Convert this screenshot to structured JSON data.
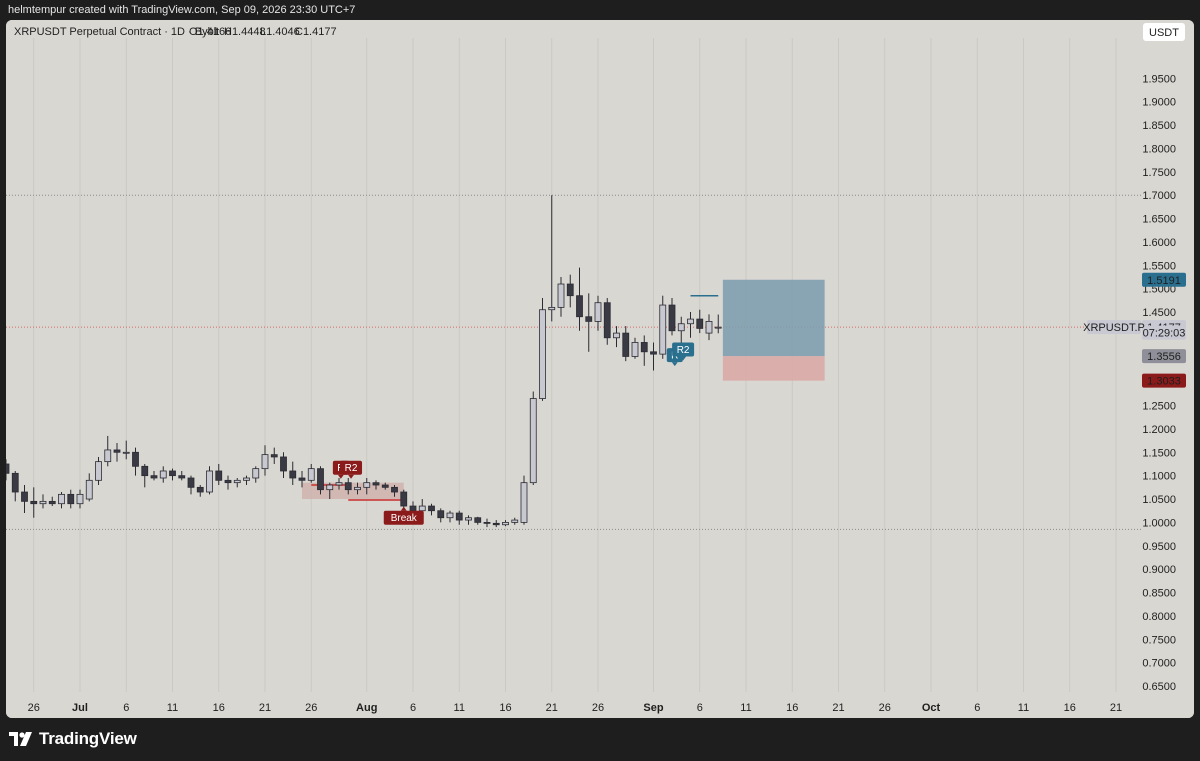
{
  "header": {
    "credit": "helmtempur created with TradingView.com, Sep 09, 2026 23:30 UTC+7"
  },
  "footer": {
    "brand": "TradingView"
  },
  "colors": {
    "background": "#d9d7d2",
    "up_candle_fill": "#c8c8d0",
    "down_candle_fill": "#3a3a44",
    "wick": "#2b2b33",
    "blue_zone": "#7f9fae",
    "red_zone": "#d9aaa6",
    "pink_range": "#cfb3ae",
    "level_red": "#c92d2d",
    "badge_red": "#8b1a1a",
    "badge_blue": "#2b6f8f"
  },
  "chart_data": {
    "type": "candlestick",
    "title": "XRPUSDT Perpetual Contract · 1D · Bybit",
    "ohlc_readout": {
      "o": "O1.4166",
      "h": "H1.4448",
      "l": "L1.4046",
      "c": "C1.4177"
    },
    "currency_button": "USDT",
    "ylim": [
      0.63,
      2.05
    ],
    "y_ticks": [
      "0.6500",
      "0.7000",
      "0.7500",
      "0.8000",
      "0.8500",
      "0.9000",
      "0.9500",
      "1.0000",
      "1.0500",
      "1.1000",
      "1.1500",
      "1.2000",
      "1.2500",
      "1.3000",
      "1.3500",
      "1.4000",
      "1.4500",
      "1.5000",
      "1.5500",
      "1.6000",
      "1.6500",
      "1.7000",
      "1.7500",
      "1.8000",
      "1.8500",
      "1.9000",
      "1.9500"
    ],
    "x_ticks": [
      {
        "label": "26",
        "day": -5
      },
      {
        "label": "Jul",
        "day": 0
      },
      {
        "label": "6",
        "day": 5
      },
      {
        "label": "11",
        "day": 10
      },
      {
        "label": "16",
        "day": 15
      },
      {
        "label": "21",
        "day": 20
      },
      {
        "label": "26",
        "day": 25
      },
      {
        "label": "Aug",
        "day": 31
      },
      {
        "label": "6",
        "day": 36
      },
      {
        "label": "11",
        "day": 41
      },
      {
        "label": "16",
        "day": 46
      },
      {
        "label": "21",
        "day": 51
      },
      {
        "label": "26",
        "day": 56
      },
      {
        "label": "Sep",
        "day": 62
      },
      {
        "label": "6",
        "day": 67
      },
      {
        "label": "11",
        "day": 72
      },
      {
        "label": "16",
        "day": 77
      },
      {
        "label": "21",
        "day": 82
      },
      {
        "label": "26",
        "day": 87
      },
      {
        "label": "Oct",
        "day": 92
      },
      {
        "label": "6",
        "day": 97
      },
      {
        "label": "11",
        "day": 102
      },
      {
        "label": "16",
        "day": 107
      },
      {
        "label": "21",
        "day": 112
      }
    ],
    "candles": [
      {
        "day": -8,
        "o": 1.125,
        "h": 1.135,
        "l": 1.09,
        "c": 1.105
      },
      {
        "day": -7,
        "o": 1.105,
        "h": 1.11,
        "l": 1.045,
        "c": 1.065
      },
      {
        "day": -6,
        "o": 1.065,
        "h": 1.08,
        "l": 1.02,
        "c": 1.045
      },
      {
        "day": -5,
        "o": 1.045,
        "h": 1.075,
        "l": 1.01,
        "c": 1.04
      },
      {
        "day": -4,
        "o": 1.04,
        "h": 1.06,
        "l": 1.03,
        "c": 1.045
      },
      {
        "day": -3,
        "o": 1.045,
        "h": 1.055,
        "l": 1.035,
        "c": 1.04
      },
      {
        "day": -2,
        "o": 1.04,
        "h": 1.065,
        "l": 1.03,
        "c": 1.06
      },
      {
        "day": -1,
        "o": 1.06,
        "h": 1.07,
        "l": 1.03,
        "c": 1.04
      },
      {
        "day": 0,
        "o": 1.04,
        "h": 1.07,
        "l": 1.03,
        "c": 1.06
      },
      {
        "day": 1,
        "o": 1.05,
        "h": 1.105,
        "l": 1.045,
        "c": 1.09
      },
      {
        "day": 2,
        "o": 1.09,
        "h": 1.14,
        "l": 1.08,
        "c": 1.13
      },
      {
        "day": 3,
        "o": 1.13,
        "h": 1.185,
        "l": 1.12,
        "c": 1.155
      },
      {
        "day": 4,
        "o": 1.155,
        "h": 1.17,
        "l": 1.13,
        "c": 1.15
      },
      {
        "day": 5,
        "o": 1.15,
        "h": 1.175,
        "l": 1.135,
        "c": 1.15
      },
      {
        "day": 6,
        "o": 1.15,
        "h": 1.16,
        "l": 1.1,
        "c": 1.12
      },
      {
        "day": 7,
        "o": 1.12,
        "h": 1.125,
        "l": 1.075,
        "c": 1.1
      },
      {
        "day": 8,
        "o": 1.1,
        "h": 1.11,
        "l": 1.09,
        "c": 1.095
      },
      {
        "day": 9,
        "o": 1.095,
        "h": 1.12,
        "l": 1.085,
        "c": 1.11
      },
      {
        "day": 10,
        "o": 1.11,
        "h": 1.115,
        "l": 1.09,
        "c": 1.1
      },
      {
        "day": 11,
        "o": 1.1,
        "h": 1.11,
        "l": 1.09,
        "c": 1.095
      },
      {
        "day": 12,
        "o": 1.095,
        "h": 1.1,
        "l": 1.06,
        "c": 1.075
      },
      {
        "day": 13,
        "o": 1.075,
        "h": 1.08,
        "l": 1.055,
        "c": 1.065
      },
      {
        "day": 14,
        "o": 1.065,
        "h": 1.12,
        "l": 1.06,
        "c": 1.11
      },
      {
        "day": 15,
        "o": 1.11,
        "h": 1.125,
        "l": 1.08,
        "c": 1.09
      },
      {
        "day": 16,
        "o": 1.09,
        "h": 1.1,
        "l": 1.07,
        "c": 1.085
      },
      {
        "day": 17,
        "o": 1.085,
        "h": 1.095,
        "l": 1.075,
        "c": 1.09
      },
      {
        "day": 18,
        "o": 1.09,
        "h": 1.1,
        "l": 1.08,
        "c": 1.095
      },
      {
        "day": 19,
        "o": 1.095,
        "h": 1.12,
        "l": 1.085,
        "c": 1.115
      },
      {
        "day": 20,
        "o": 1.115,
        "h": 1.165,
        "l": 1.1,
        "c": 1.145
      },
      {
        "day": 21,
        "o": 1.145,
        "h": 1.16,
        "l": 1.125,
        "c": 1.14
      },
      {
        "day": 22,
        "o": 1.14,
        "h": 1.15,
        "l": 1.095,
        "c": 1.11
      },
      {
        "day": 23,
        "o": 1.11,
        "h": 1.13,
        "l": 1.08,
        "c": 1.095
      },
      {
        "day": 24,
        "o": 1.095,
        "h": 1.11,
        "l": 1.075,
        "c": 1.09
      },
      {
        "day": 25,
        "o": 1.09,
        "h": 1.125,
        "l": 1.085,
        "c": 1.115
      },
      {
        "day": 26,
        "o": 1.115,
        "h": 1.12,
        "l": 1.06,
        "c": 1.07
      },
      {
        "day": 27,
        "o": 1.07,
        "h": 1.085,
        "l": 1.05,
        "c": 1.08
      },
      {
        "day": 28,
        "o": 1.08,
        "h": 1.095,
        "l": 1.07,
        "c": 1.085
      },
      {
        "day": 29,
        "o": 1.085,
        "h": 1.095,
        "l": 1.06,
        "c": 1.07
      },
      {
        "day": 30,
        "o": 1.07,
        "h": 1.085,
        "l": 1.06,
        "c": 1.075
      },
      {
        "day": 31,
        "o": 1.075,
        "h": 1.095,
        "l": 1.06,
        "c": 1.085
      },
      {
        "day": 32,
        "o": 1.085,
        "h": 1.09,
        "l": 1.07,
        "c": 1.08
      },
      {
        "day": 33,
        "o": 1.08,
        "h": 1.085,
        "l": 1.07,
        "c": 1.075
      },
      {
        "day": 34,
        "o": 1.075,
        "h": 1.08,
        "l": 1.055,
        "c": 1.065
      },
      {
        "day": 35,
        "o": 1.065,
        "h": 1.07,
        "l": 1.025,
        "c": 1.035
      },
      {
        "day": 36,
        "o": 1.035,
        "h": 1.045,
        "l": 1.015,
        "c": 1.025
      },
      {
        "day": 37,
        "o": 1.025,
        "h": 1.05,
        "l": 1.02,
        "c": 1.035
      },
      {
        "day": 38,
        "o": 1.035,
        "h": 1.04,
        "l": 1.015,
        "c": 1.025
      },
      {
        "day": 39,
        "o": 1.025,
        "h": 1.03,
        "l": 1.0,
        "c": 1.01
      },
      {
        "day": 40,
        "o": 1.01,
        "h": 1.025,
        "l": 1.0,
        "c": 1.02
      },
      {
        "day": 41,
        "o": 1.02,
        "h": 1.025,
        "l": 0.995,
        "c": 1.005
      },
      {
        "day": 42,
        "o": 1.005,
        "h": 1.015,
        "l": 0.995,
        "c": 1.01
      },
      {
        "day": 43,
        "o": 1.01,
        "h": 1.012,
        "l": 0.995,
        "c": 1.0
      },
      {
        "day": 44,
        "o": 1.0,
        "h": 1.008,
        "l": 0.99,
        "c": 0.998
      },
      {
        "day": 45,
        "o": 0.998,
        "h": 1.005,
        "l": 0.99,
        "c": 0.995
      },
      {
        "day": 46,
        "o": 0.995,
        "h": 1.005,
        "l": 0.992,
        "c": 1.0
      },
      {
        "day": 47,
        "o": 1.0,
        "h": 1.01,
        "l": 0.995,
        "c": 1.005
      },
      {
        "day": 48,
        "o": 1.0,
        "h": 1.1,
        "l": 0.995,
        "c": 1.085
      },
      {
        "day": 49,
        "o": 1.085,
        "h": 1.28,
        "l": 1.08,
        "c": 1.265
      },
      {
        "day": 50,
        "o": 1.265,
        "h": 1.48,
        "l": 1.26,
        "c": 1.455
      },
      {
        "day": 51,
        "o": 1.455,
        "h": 1.7,
        "l": 1.43,
        "c": 1.46
      },
      {
        "day": 52,
        "o": 1.46,
        "h": 1.525,
        "l": 1.44,
        "c": 1.51
      },
      {
        "day": 53,
        "o": 1.51,
        "h": 1.53,
        "l": 1.46,
        "c": 1.485
      },
      {
        "day": 54,
        "o": 1.485,
        "h": 1.545,
        "l": 1.41,
        "c": 1.44
      },
      {
        "day": 55,
        "o": 1.44,
        "h": 1.49,
        "l": 1.365,
        "c": 1.43
      },
      {
        "day": 56,
        "o": 1.43,
        "h": 1.485,
        "l": 1.41,
        "c": 1.47
      },
      {
        "day": 57,
        "o": 1.47,
        "h": 1.48,
        "l": 1.38,
        "c": 1.395
      },
      {
        "day": 58,
        "o": 1.395,
        "h": 1.42,
        "l": 1.375,
        "c": 1.405
      },
      {
        "day": 59,
        "o": 1.405,
        "h": 1.42,
        "l": 1.345,
        "c": 1.355
      },
      {
        "day": 60,
        "o": 1.355,
        "h": 1.395,
        "l": 1.35,
        "c": 1.385
      },
      {
        "day": 61,
        "o": 1.385,
        "h": 1.4,
        "l": 1.335,
        "c": 1.365
      },
      {
        "day": 62,
        "o": 1.365,
        "h": 1.385,
        "l": 1.325,
        "c": 1.36
      },
      {
        "day": 63,
        "o": 1.36,
        "h": 1.485,
        "l": 1.35,
        "c": 1.465
      },
      {
        "day": 64,
        "o": 1.465,
        "h": 1.48,
        "l": 1.4,
        "c": 1.41
      },
      {
        "day": 65,
        "o": 1.41,
        "h": 1.44,
        "l": 1.375,
        "c": 1.425
      },
      {
        "day": 66,
        "o": 1.425,
        "h": 1.45,
        "l": 1.395,
        "c": 1.435
      },
      {
        "day": 67,
        "o": 1.435,
        "h": 1.455,
        "l": 1.405,
        "c": 1.415
      },
      {
        "day": 68,
        "o": 1.405,
        "h": 1.445,
        "l": 1.39,
        "c": 1.43
      },
      {
        "day": 69,
        "o": 1.4166,
        "h": 1.4448,
        "l": 1.4046,
        "c": 1.4177
      }
    ],
    "zones": {
      "entry": 1.3556,
      "target": 1.5191,
      "stop": 1.3033,
      "start_day": 69.5,
      "end_day": 80.5,
      "pink_range": {
        "day_start": 24,
        "day_end": 35,
        "low": 1.05,
        "high": 1.085
      }
    },
    "levels": {
      "dotted_top": 1.7,
      "dotted_bottom": 0.985,
      "current_dotted": 1.4177,
      "red_short": {
        "price": 1.08,
        "day_start": 25,
        "day_end": 29
      },
      "red_break": {
        "price": 1.048,
        "day_start": 29,
        "day_end": 35
      },
      "blue_short": {
        "price": 1.485,
        "day_start": 66,
        "day_end": 69
      }
    },
    "annotations": [
      {
        "text": "R",
        "color": "badge_red",
        "day": 28.2,
        "price": 1.117
      },
      {
        "text": "R2",
        "color": "badge_red",
        "day": 29.3,
        "price": 1.117
      },
      {
        "text": "Break",
        "color": "badge_red",
        "day": 35,
        "price": 1.01
      },
      {
        "text": "R",
        "color": "badge_blue",
        "day": 64.3,
        "price": 1.358
      },
      {
        "text": "R2",
        "color": "badge_blue",
        "day": 65.2,
        "price": 1.37
      }
    ],
    "price_labels": [
      {
        "text": "1.5191",
        "bg": "#2b6f8f",
        "fg": "#ffffff",
        "price": 1.5191
      },
      {
        "text": "1.4177",
        "bg": "#c8c9d2",
        "fg": "#1f1f1f",
        "price": 1.4177
      },
      {
        "text": "07:29:03",
        "bg": "#c8c9d2",
        "fg": "#1f1f1f",
        "price": 1.406
      },
      {
        "text": "1.3556",
        "bg": "#8e8f98",
        "fg": "#ffffff",
        "price": 1.3556
      },
      {
        "text": "1.3033",
        "bg": "#8b1a1a",
        "fg": "#ffffff",
        "price": 1.3033
      }
    ],
    "symbol_tag": "XRPUSDT.P"
  }
}
